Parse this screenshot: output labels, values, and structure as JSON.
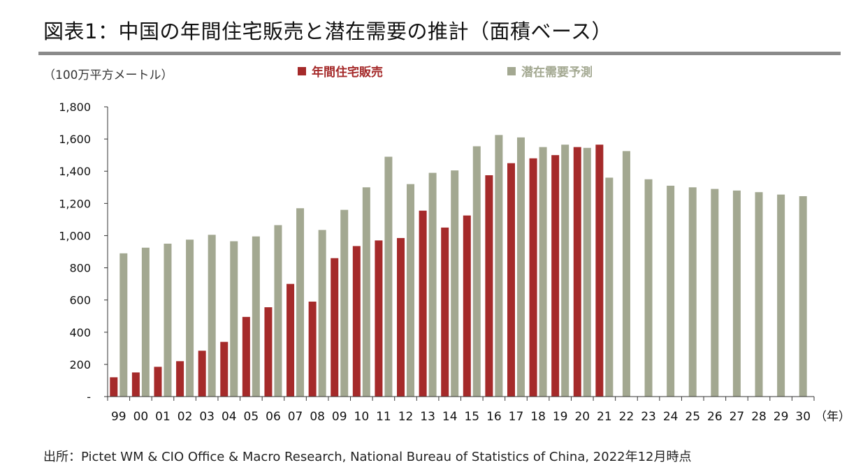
{
  "title": "図表1：中国の年間住宅販売と潜在需要の推計（面積ベース）",
  "source": "出所：Pictet WM & CIO Office & Macro Research, National Bureau of Statistics of China, 2022年12月時点",
  "colors": {
    "sales": "#a52a2a",
    "demand": "#a3a891",
    "axis": "#333333",
    "rule": "#8a8a8a"
  },
  "chart_data": {
    "type": "bar",
    "unit_label": "（100万平方メートル）",
    "x_unit_label": "（年）",
    "categories": [
      "99",
      "00",
      "01",
      "02",
      "03",
      "04",
      "05",
      "06",
      "07",
      "08",
      "09",
      "10",
      "11",
      "12",
      "13",
      "14",
      "15",
      "16",
      "17",
      "18",
      "19",
      "20",
      "21",
      "22",
      "23",
      "24",
      "25",
      "26",
      "27",
      "28",
      "29",
      "30"
    ],
    "series": [
      {
        "name": "年間住宅販売",
        "values": [
          120,
          150,
          185,
          220,
          285,
          340,
          495,
          555,
          700,
          590,
          860,
          935,
          970,
          985,
          1155,
          1050,
          1125,
          1375,
          1450,
          1480,
          1500,
          1550,
          1565,
          null,
          null,
          null,
          null,
          null,
          null,
          null,
          null,
          null
        ]
      },
      {
        "name": "潜在需要予測",
        "values": [
          890,
          925,
          950,
          975,
          1005,
          965,
          995,
          1065,
          1170,
          1035,
          1160,
          1300,
          1490,
          1320,
          1390,
          1405,
          1555,
          1625,
          1610,
          1550,
          1565,
          1545,
          1360,
          1525,
          1350,
          1310,
          1300,
          1290,
          1280,
          1270,
          1255,
          1245
        ]
      }
    ],
    "ylim": [
      0,
      1800
    ],
    "yticks": [
      0,
      200,
      400,
      600,
      800,
      1000,
      1200,
      1400,
      1600,
      1800
    ],
    "ytick_labels": [
      "-",
      "200",
      "400",
      "600",
      "800",
      "1,000",
      "1,200",
      "1,400",
      "1,600",
      "1,800"
    ],
    "grid": false,
    "legend_position": "top-center"
  }
}
